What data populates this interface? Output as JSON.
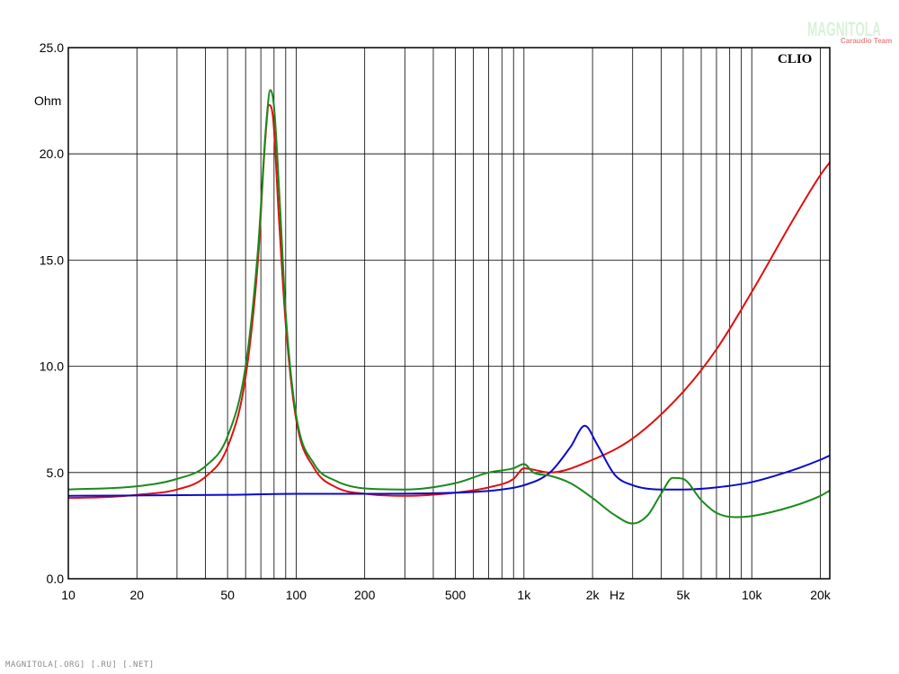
{
  "chart_data": {
    "type": "line",
    "title": "",
    "xlabel": "Hz",
    "ylabel": "Ohm",
    "x_scale": "log",
    "xlim": [
      10,
      22000
    ],
    "ylim": [
      0,
      25
    ],
    "grid": true,
    "watermark": "CLIO",
    "x_ticks": [
      {
        "value": 10,
        "label": "10"
      },
      {
        "value": 20,
        "label": "20"
      },
      {
        "value": 50,
        "label": "50"
      },
      {
        "value": 100,
        "label": "100"
      },
      {
        "value": 200,
        "label": "200"
      },
      {
        "value": 500,
        "label": "500"
      },
      {
        "value": 1000,
        "label": "1k"
      },
      {
        "value": 2000,
        "label": "2k"
      },
      {
        "value": 5000,
        "label": "5k"
      },
      {
        "value": 10000,
        "label": "10k"
      },
      {
        "value": 20000,
        "label": "20k"
      }
    ],
    "y_ticks": [
      {
        "value": 0,
        "label": "0.0"
      },
      {
        "value": 5,
        "label": "5.0"
      },
      {
        "value": 10,
        "label": "10.0"
      },
      {
        "value": 15,
        "label": "15.0"
      },
      {
        "value": 20,
        "label": "20.0"
      },
      {
        "value": 25,
        "label": "25.0"
      }
    ],
    "series": [
      {
        "color": "#e01010",
        "points": [
          [
            10,
            3.8
          ],
          [
            15,
            3.85
          ],
          [
            20,
            3.95
          ],
          [
            30,
            4.2
          ],
          [
            40,
            4.8
          ],
          [
            50,
            6.2
          ],
          [
            60,
            9.5
          ],
          [
            68,
            15
          ],
          [
            73,
            20.5
          ],
          [
            76,
            22.3
          ],
          [
            79,
            21.8
          ],
          [
            84,
            17
          ],
          [
            90,
            12
          ],
          [
            100,
            7.5
          ],
          [
            120,
            5.2
          ],
          [
            150,
            4.3
          ],
          [
            200,
            4.0
          ],
          [
            300,
            3.9
          ],
          [
            500,
            4.05
          ],
          [
            700,
            4.3
          ],
          [
            900,
            4.7
          ],
          [
            1000,
            5.2
          ],
          [
            1300,
            5.0
          ],
          [
            2000,
            5.6
          ],
          [
            3000,
            6.6
          ],
          [
            5000,
            8.8
          ],
          [
            7000,
            10.8
          ],
          [
            10000,
            13.5
          ],
          [
            15000,
            16.8
          ],
          [
            20000,
            19.0
          ],
          [
            22000,
            19.6
          ]
        ]
      },
      {
        "color": "#0a0acc",
        "points": [
          [
            10,
            3.9
          ],
          [
            50,
            3.95
          ],
          [
            100,
            4.0
          ],
          [
            200,
            4.0
          ],
          [
            500,
            4.05
          ],
          [
            800,
            4.2
          ],
          [
            1000,
            4.4
          ],
          [
            1300,
            5.0
          ],
          [
            1600,
            6.2
          ],
          [
            1850,
            7.2
          ],
          [
            2100,
            6.3
          ],
          [
            2500,
            4.9
          ],
          [
            3000,
            4.4
          ],
          [
            4000,
            4.2
          ],
          [
            5000,
            4.2
          ],
          [
            7000,
            4.3
          ],
          [
            10000,
            4.55
          ],
          [
            15000,
            5.1
          ],
          [
            20000,
            5.6
          ],
          [
            22000,
            5.8
          ]
        ]
      },
      {
        "color": "#1a8a1a",
        "points": [
          [
            10,
            4.2
          ],
          [
            20,
            4.35
          ],
          [
            30,
            4.7
          ],
          [
            40,
            5.3
          ],
          [
            50,
            6.7
          ],
          [
            60,
            10
          ],
          [
            68,
            15.5
          ],
          [
            74,
            21.5
          ],
          [
            77,
            23.0
          ],
          [
            80,
            22.2
          ],
          [
            85,
            17.5
          ],
          [
            90,
            12.5
          ],
          [
            100,
            7.7
          ],
          [
            120,
            5.4
          ],
          [
            150,
            4.6
          ],
          [
            200,
            4.25
          ],
          [
            300,
            4.2
          ],
          [
            500,
            4.5
          ],
          [
            700,
            5.0
          ],
          [
            900,
            5.2
          ],
          [
            1000,
            5.4
          ],
          [
            1100,
            5.0
          ],
          [
            1300,
            4.85
          ],
          [
            1600,
            4.5
          ],
          [
            2000,
            3.8
          ],
          [
            2500,
            3.0
          ],
          [
            3000,
            2.6
          ],
          [
            3500,
            3.0
          ],
          [
            4000,
            4.0
          ],
          [
            4500,
            4.75
          ],
          [
            5000,
            4.7
          ],
          [
            6000,
            3.7
          ],
          [
            7000,
            3.1
          ],
          [
            8500,
            2.9
          ],
          [
            10000,
            2.95
          ],
          [
            15000,
            3.4
          ],
          [
            20000,
            3.9
          ],
          [
            22000,
            4.15
          ]
        ]
      }
    ]
  },
  "logo": {
    "main": "MAGNITOLA",
    "sub": "Caraudio Team"
  },
  "footer": "MAGNITOLA[.ORG] [.RU] [.NET]"
}
